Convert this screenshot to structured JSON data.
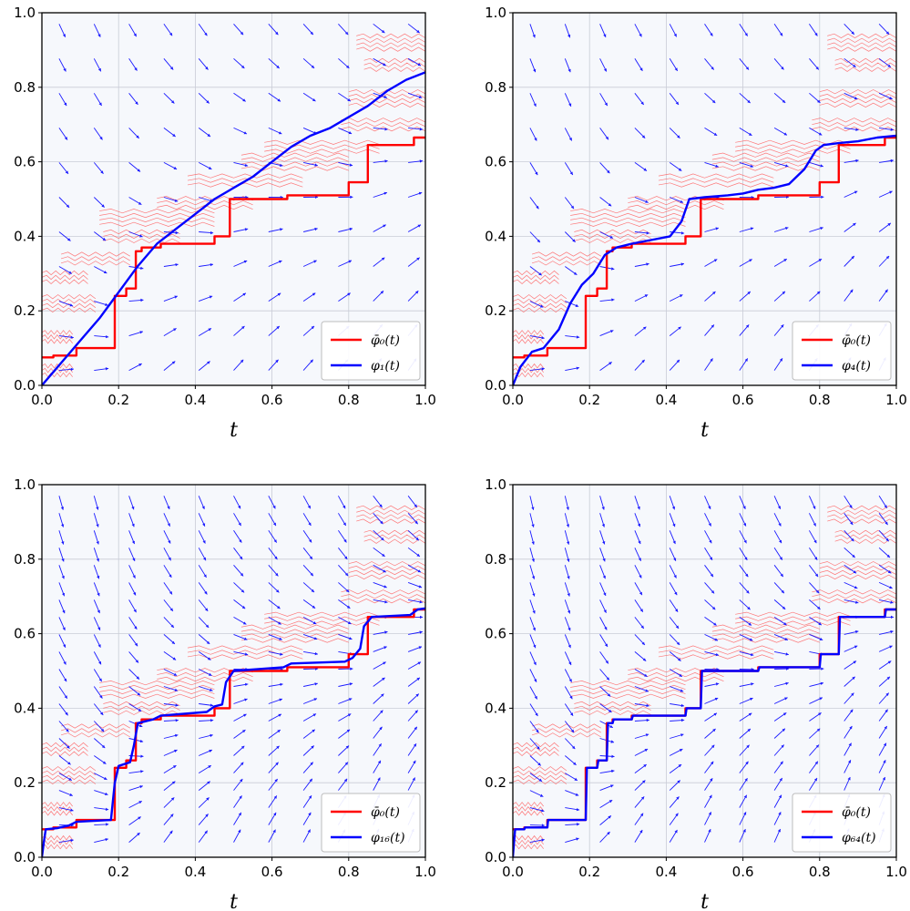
{
  "colors": {
    "background": "#f6f8fc",
    "grid": "#c9ccd6",
    "target": "#ff0000",
    "approx": "#0000ff",
    "arrow": "#1a1aff",
    "blob": "#ff4d4d"
  },
  "chart_data": [
    {
      "type": "line",
      "xlabel": "t",
      "xlim": [
        0,
        1
      ],
      "ylim": [
        0,
        1
      ],
      "xticks": [
        "0.0",
        "0.2",
        "0.4",
        "0.6",
        "0.8",
        "1.0"
      ],
      "yticks": [
        "0.0",
        "0.2",
        "0.4",
        "0.6",
        "0.8",
        "1.0"
      ],
      "grid": true,
      "legend_position": "bottom-right",
      "legend": [
        {
          "label": "φ̄₀(t)",
          "color": "#ff0000"
        },
        {
          "label": "φ₁(t)",
          "color": "#0000ff"
        }
      ],
      "series": [
        {
          "name": "φ̄₀(t)",
          "x": [
            0,
            0.03,
            0.03,
            0.09,
            0.09,
            0.19,
            0.19,
            0.22,
            0.22,
            0.245,
            0.245,
            0.26,
            0.26,
            0.31,
            0.31,
            0.45,
            0.45,
            0.49,
            0.49,
            0.64,
            0.64,
            0.8,
            0.8,
            0.85,
            0.85,
            0.97,
            0.97,
            1.0
          ],
          "y": [
            0.075,
            0.075,
            0.08,
            0.08,
            0.1,
            0.1,
            0.24,
            0.24,
            0.26,
            0.26,
            0.36,
            0.36,
            0.37,
            0.37,
            0.38,
            0.38,
            0.4,
            0.4,
            0.5,
            0.5,
            0.51,
            0.51,
            0.545,
            0.545,
            0.645,
            0.645,
            0.665,
            0.665
          ]
        },
        {
          "name": "φ₁(t)",
          "x": [
            0,
            0.05,
            0.1,
            0.15,
            0.2,
            0.25,
            0.3,
            0.35,
            0.4,
            0.45,
            0.5,
            0.55,
            0.6,
            0.65,
            0.7,
            0.75,
            0.8,
            0.85,
            0.9,
            0.95,
            1.0
          ],
          "y": [
            0,
            0.06,
            0.12,
            0.18,
            0.25,
            0.32,
            0.38,
            0.42,
            0.46,
            0.5,
            0.53,
            0.56,
            0.6,
            0.64,
            0.67,
            0.69,
            0.72,
            0.75,
            0.79,
            0.82,
            0.84
          ]
        }
      ],
      "field": {
        "grid": [
          11,
          11
        ],
        "strength": 0.6
      },
      "density_clusters": [
        {
          "y": 0.04,
          "x": 0.0,
          "w": 0.08,
          "n": 3
        },
        {
          "y": 0.13,
          "x": 0.0,
          "w": 0.08,
          "n": 3
        },
        {
          "y": 0.22,
          "x": 0.0,
          "w": 0.14,
          "n": 4
        },
        {
          "y": 0.29,
          "x": 0.0,
          "w": 0.12,
          "n": 3
        },
        {
          "y": 0.34,
          "x": 0.05,
          "w": 0.18,
          "n": 3
        },
        {
          "y": 0.4,
          "x": 0.16,
          "w": 0.2,
          "n": 3
        },
        {
          "y": 0.45,
          "x": 0.15,
          "w": 0.3,
          "n": 4
        },
        {
          "y": 0.49,
          "x": 0.3,
          "w": 0.25,
          "n": 3
        },
        {
          "y": 0.55,
          "x": 0.38,
          "w": 0.3,
          "n": 3
        },
        {
          "y": 0.6,
          "x": 0.52,
          "w": 0.28,
          "n": 4
        },
        {
          "y": 0.64,
          "x": 0.58,
          "w": 0.3,
          "n": 3
        },
        {
          "y": 0.7,
          "x": 0.78,
          "w": 0.22,
          "n": 3
        },
        {
          "y": 0.77,
          "x": 0.8,
          "w": 0.2,
          "n": 4
        },
        {
          "y": 0.86,
          "x": 0.84,
          "w": 0.16,
          "n": 3
        },
        {
          "y": 0.92,
          "x": 0.82,
          "w": 0.18,
          "n": 4
        }
      ]
    },
    {
      "type": "line",
      "xlabel": "t",
      "xlim": [
        0,
        1
      ],
      "ylim": [
        0,
        1
      ],
      "xticks": [
        "0.0",
        "0.2",
        "0.4",
        "0.6",
        "0.8",
        "1.0"
      ],
      "yticks": [
        "0.0",
        "0.2",
        "0.4",
        "0.6",
        "0.8",
        "1.0"
      ],
      "grid": true,
      "legend_position": "bottom-right",
      "legend": [
        {
          "label": "φ̄₀(t)",
          "color": "#ff0000"
        },
        {
          "label": "φ₄(t)",
          "color": "#0000ff"
        }
      ],
      "series": [
        {
          "name": "φ̄₀(t)",
          "x": [
            0,
            0.03,
            0.03,
            0.09,
            0.09,
            0.19,
            0.19,
            0.22,
            0.22,
            0.245,
            0.245,
            0.26,
            0.26,
            0.31,
            0.31,
            0.45,
            0.45,
            0.49,
            0.49,
            0.64,
            0.64,
            0.8,
            0.8,
            0.85,
            0.85,
            0.97,
            0.97,
            1.0
          ],
          "y": [
            0.075,
            0.075,
            0.08,
            0.08,
            0.1,
            0.1,
            0.24,
            0.24,
            0.26,
            0.26,
            0.36,
            0.36,
            0.37,
            0.37,
            0.38,
            0.38,
            0.4,
            0.4,
            0.5,
            0.5,
            0.51,
            0.51,
            0.545,
            0.545,
            0.645,
            0.645,
            0.665,
            0.665
          ]
        },
        {
          "name": "φ₄(t)",
          "x": [
            0,
            0.02,
            0.05,
            0.08,
            0.12,
            0.15,
            0.18,
            0.21,
            0.24,
            0.27,
            0.31,
            0.36,
            0.41,
            0.44,
            0.46,
            0.5,
            0.56,
            0.6,
            0.64,
            0.68,
            0.72,
            0.76,
            0.79,
            0.81,
            0.85,
            0.9,
            0.95,
            1.0
          ],
          "y": [
            0,
            0.05,
            0.09,
            0.1,
            0.15,
            0.22,
            0.27,
            0.3,
            0.35,
            0.37,
            0.38,
            0.39,
            0.4,
            0.44,
            0.5,
            0.505,
            0.51,
            0.515,
            0.525,
            0.53,
            0.54,
            0.58,
            0.63,
            0.645,
            0.65,
            0.655,
            0.665,
            0.67
          ]
        }
      ],
      "field": {
        "grid": [
          11,
          11
        ],
        "strength": 0.8
      },
      "density_clusters": [
        {
          "y": 0.04,
          "x": 0.0,
          "w": 0.08,
          "n": 3
        },
        {
          "y": 0.13,
          "x": 0.0,
          "w": 0.08,
          "n": 3
        },
        {
          "y": 0.22,
          "x": 0.0,
          "w": 0.14,
          "n": 4
        },
        {
          "y": 0.29,
          "x": 0.0,
          "w": 0.12,
          "n": 3
        },
        {
          "y": 0.34,
          "x": 0.05,
          "w": 0.18,
          "n": 3
        },
        {
          "y": 0.4,
          "x": 0.16,
          "w": 0.2,
          "n": 3
        },
        {
          "y": 0.45,
          "x": 0.15,
          "w": 0.3,
          "n": 4
        },
        {
          "y": 0.49,
          "x": 0.3,
          "w": 0.25,
          "n": 3
        },
        {
          "y": 0.55,
          "x": 0.38,
          "w": 0.3,
          "n": 3
        },
        {
          "y": 0.6,
          "x": 0.52,
          "w": 0.28,
          "n": 4
        },
        {
          "y": 0.64,
          "x": 0.58,
          "w": 0.3,
          "n": 3
        },
        {
          "y": 0.7,
          "x": 0.78,
          "w": 0.22,
          "n": 3
        },
        {
          "y": 0.77,
          "x": 0.8,
          "w": 0.2,
          "n": 4
        },
        {
          "y": 0.86,
          "x": 0.84,
          "w": 0.16,
          "n": 3
        },
        {
          "y": 0.92,
          "x": 0.82,
          "w": 0.18,
          "n": 4
        }
      ]
    },
    {
      "type": "line",
      "xlabel": "t",
      "xlim": [
        0,
        1
      ],
      "ylim": [
        0,
        1
      ],
      "xticks": [
        "0.0",
        "0.2",
        "0.4",
        "0.6",
        "0.8",
        "1.0"
      ],
      "yticks": [
        "0.0",
        "0.2",
        "0.4",
        "0.6",
        "0.8",
        "1.0"
      ],
      "grid": true,
      "legend_position": "bottom-right",
      "legend": [
        {
          "label": "φ̄₀(t)",
          "color": "#ff0000"
        },
        {
          "label": "φ₁₆(t)",
          "color": "#0000ff"
        }
      ],
      "series": [
        {
          "name": "φ̄₀(t)",
          "x": [
            0,
            0.03,
            0.03,
            0.09,
            0.09,
            0.19,
            0.19,
            0.22,
            0.22,
            0.245,
            0.245,
            0.26,
            0.26,
            0.31,
            0.31,
            0.45,
            0.45,
            0.49,
            0.49,
            0.64,
            0.64,
            0.8,
            0.8,
            0.85,
            0.85,
            0.97,
            0.97,
            1.0
          ],
          "y": [
            0.075,
            0.075,
            0.08,
            0.08,
            0.1,
            0.1,
            0.24,
            0.24,
            0.26,
            0.26,
            0.36,
            0.36,
            0.37,
            0.37,
            0.38,
            0.38,
            0.4,
            0.4,
            0.5,
            0.5,
            0.51,
            0.51,
            0.545,
            0.545,
            0.645,
            0.645,
            0.665,
            0.665
          ]
        },
        {
          "name": "φ₁₆(t)",
          "x": [
            0,
            0.005,
            0.01,
            0.04,
            0.07,
            0.09,
            0.18,
            0.19,
            0.2,
            0.23,
            0.24,
            0.25,
            0.29,
            0.31,
            0.43,
            0.45,
            0.47,
            0.48,
            0.5,
            0.63,
            0.65,
            0.79,
            0.81,
            0.83,
            0.84,
            0.86,
            0.96,
            0.98,
            1.0
          ],
          "y": [
            0,
            0.04,
            0.075,
            0.078,
            0.085,
            0.095,
            0.1,
            0.2,
            0.245,
            0.255,
            0.3,
            0.36,
            0.37,
            0.38,
            0.39,
            0.405,
            0.41,
            0.47,
            0.5,
            0.51,
            0.52,
            0.525,
            0.535,
            0.56,
            0.62,
            0.645,
            0.65,
            0.665,
            0.668
          ]
        }
      ],
      "field": {
        "grid": [
          11,
          21
        ],
        "strength": 1.0
      },
      "density_clusters": [
        {
          "y": 0.04,
          "x": 0.0,
          "w": 0.08,
          "n": 3
        },
        {
          "y": 0.13,
          "x": 0.0,
          "w": 0.08,
          "n": 3
        },
        {
          "y": 0.22,
          "x": 0.0,
          "w": 0.14,
          "n": 4
        },
        {
          "y": 0.29,
          "x": 0.0,
          "w": 0.12,
          "n": 3
        },
        {
          "y": 0.34,
          "x": 0.05,
          "w": 0.18,
          "n": 3
        },
        {
          "y": 0.4,
          "x": 0.16,
          "w": 0.2,
          "n": 3
        },
        {
          "y": 0.45,
          "x": 0.15,
          "w": 0.3,
          "n": 4
        },
        {
          "y": 0.49,
          "x": 0.3,
          "w": 0.25,
          "n": 3
        },
        {
          "y": 0.55,
          "x": 0.38,
          "w": 0.3,
          "n": 3
        },
        {
          "y": 0.6,
          "x": 0.52,
          "w": 0.28,
          "n": 4
        },
        {
          "y": 0.64,
          "x": 0.58,
          "w": 0.3,
          "n": 3
        },
        {
          "y": 0.7,
          "x": 0.78,
          "w": 0.22,
          "n": 3
        },
        {
          "y": 0.77,
          "x": 0.8,
          "w": 0.2,
          "n": 4
        },
        {
          "y": 0.86,
          "x": 0.84,
          "w": 0.16,
          "n": 3
        },
        {
          "y": 0.92,
          "x": 0.82,
          "w": 0.18,
          "n": 4
        }
      ]
    },
    {
      "type": "line",
      "xlabel": "t",
      "xlim": [
        0,
        1
      ],
      "ylim": [
        0,
        1
      ],
      "xticks": [
        "0.0",
        "0.2",
        "0.4",
        "0.6",
        "0.8",
        "1.0"
      ],
      "yticks": [
        "0.0",
        "0.2",
        "0.4",
        "0.6",
        "0.8",
        "1.0"
      ],
      "grid": true,
      "legend_position": "bottom-right",
      "legend": [
        {
          "label": "φ̄₀(t)",
          "color": "#ff0000"
        },
        {
          "label": "φ₆₄(t)",
          "color": "#0000ff"
        }
      ],
      "series": [
        {
          "name": "φ̄₀(t)",
          "x": [
            0,
            0.03,
            0.03,
            0.09,
            0.09,
            0.19,
            0.19,
            0.22,
            0.22,
            0.245,
            0.245,
            0.26,
            0.26,
            0.31,
            0.31,
            0.45,
            0.45,
            0.49,
            0.49,
            0.64,
            0.64,
            0.8,
            0.8,
            0.85,
            0.85,
            0.97,
            0.97,
            1.0
          ],
          "y": [
            0.075,
            0.075,
            0.08,
            0.08,
            0.1,
            0.1,
            0.24,
            0.24,
            0.26,
            0.26,
            0.36,
            0.36,
            0.37,
            0.37,
            0.38,
            0.38,
            0.4,
            0.4,
            0.5,
            0.5,
            0.51,
            0.51,
            0.545,
            0.545,
            0.645,
            0.645,
            0.665,
            0.665
          ]
        },
        {
          "name": "φ₆₄(t)",
          "x": [
            0,
            0.003,
            0.006,
            0.03,
            0.032,
            0.09,
            0.092,
            0.19,
            0.193,
            0.22,
            0.223,
            0.245,
            0.248,
            0.26,
            0.263,
            0.31,
            0.313,
            0.45,
            0.453,
            0.49,
            0.493,
            0.64,
            0.643,
            0.8,
            0.803,
            0.85,
            0.853,
            0.97,
            0.973,
            1.0
          ],
          "y": [
            0,
            0.04,
            0.075,
            0.075,
            0.08,
            0.08,
            0.1,
            0.1,
            0.24,
            0.24,
            0.26,
            0.26,
            0.36,
            0.36,
            0.37,
            0.37,
            0.38,
            0.38,
            0.4,
            0.4,
            0.5,
            0.5,
            0.51,
            0.51,
            0.545,
            0.545,
            0.645,
            0.645,
            0.665,
            0.665
          ]
        }
      ],
      "field": {
        "grid": [
          11,
          21
        ],
        "strength": 1.2
      },
      "density_clusters": [
        {
          "y": 0.04,
          "x": 0.0,
          "w": 0.08,
          "n": 3
        },
        {
          "y": 0.13,
          "x": 0.0,
          "w": 0.08,
          "n": 3
        },
        {
          "y": 0.22,
          "x": 0.0,
          "w": 0.14,
          "n": 4
        },
        {
          "y": 0.29,
          "x": 0.0,
          "w": 0.12,
          "n": 3
        },
        {
          "y": 0.34,
          "x": 0.05,
          "w": 0.18,
          "n": 3
        },
        {
          "y": 0.4,
          "x": 0.16,
          "w": 0.2,
          "n": 3
        },
        {
          "y": 0.45,
          "x": 0.15,
          "w": 0.3,
          "n": 4
        },
        {
          "y": 0.49,
          "x": 0.3,
          "w": 0.25,
          "n": 3
        },
        {
          "y": 0.55,
          "x": 0.38,
          "w": 0.3,
          "n": 3
        },
        {
          "y": 0.6,
          "x": 0.52,
          "w": 0.28,
          "n": 4
        },
        {
          "y": 0.64,
          "x": 0.58,
          "w": 0.3,
          "n": 3
        },
        {
          "y": 0.7,
          "x": 0.78,
          "w": 0.22,
          "n": 3
        },
        {
          "y": 0.77,
          "x": 0.8,
          "w": 0.2,
          "n": 4
        },
        {
          "y": 0.86,
          "x": 0.84,
          "w": 0.16,
          "n": 3
        },
        {
          "y": 0.92,
          "x": 0.82,
          "w": 0.18,
          "n": 4
        }
      ]
    }
  ]
}
